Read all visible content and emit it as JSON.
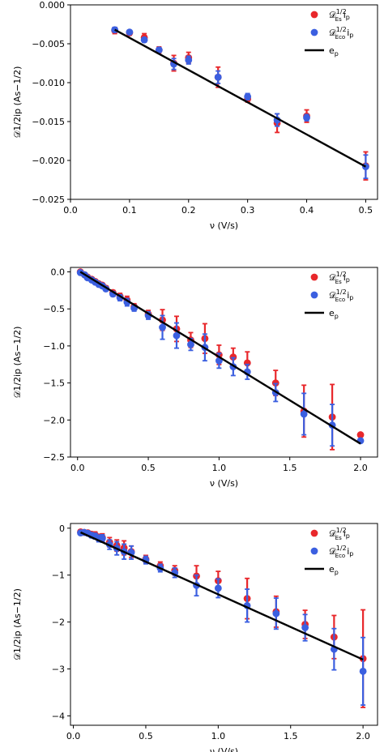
{
  "legend_labels": {
    "series_es": "𝒟",
    "series_es_sup": "1/2",
    "series_es_sub": "Es",
    "series_eco": "𝒟",
    "series_eco_sup": "1/2",
    "series_eco_sub": "Eco",
    "series_suffix": "i",
    "series_suffix_sub": "p",
    "line": "e",
    "line_sub": "p"
  },
  "colors": {
    "red": "#e8272b",
    "blue": "#3b5fe0",
    "line": "#000000"
  },
  "chart_data": [
    {
      "type": "scatter",
      "xlabel": "ν (V/s)",
      "ylabel": "𝒟1/2ip (As−1/2)",
      "xlim": [
        0.0,
        0.52
      ],
      "ylim": [
        -0.025,
        0.0
      ],
      "xticks": [
        "0.0",
        "0.1",
        "0.2",
        "0.3",
        "0.4",
        "0.5"
      ],
      "xtick_values": [
        0.0,
        0.1,
        0.2,
        0.3,
        0.4,
        0.5
      ],
      "yticks": [
        "0.000",
        "−0.005",
        "−0.010",
        "−0.015",
        "−0.020",
        "−0.025"
      ],
      "ytick_values": [
        0.0,
        -0.005,
        -0.01,
        -0.015,
        -0.02,
        -0.025
      ],
      "legend_position": "top-right",
      "fit_line": {
        "x": [
          0.075,
          0.5
        ],
        "y": [
          -0.0032,
          -0.0208
        ]
      },
      "series": [
        {
          "color": "red",
          "points": [
            [
              0.075,
              -0.0033,
              0.0004
            ],
            [
              0.1,
              -0.0036,
              0.0003
            ],
            [
              0.125,
              -0.0042,
              0.0005
            ],
            [
              0.15,
              -0.0058,
              0.0004
            ],
            [
              0.175,
              -0.0075,
              0.001
            ],
            [
              0.2,
              -0.0068,
              0.0007
            ],
            [
              0.25,
              -0.0093,
              0.0013
            ],
            [
              0.3,
              -0.0121,
              0.0004
            ],
            [
              0.35,
              -0.0152,
              0.0012
            ],
            [
              0.4,
              -0.0143,
              0.0008
            ],
            [
              0.5,
              -0.0207,
              0.0018
            ]
          ]
        },
        {
          "color": "blue",
          "points": [
            [
              0.075,
              -0.0032,
              0.0003
            ],
            [
              0.1,
              -0.0035,
              0.0002
            ],
            [
              0.125,
              -0.0045,
              0.0003
            ],
            [
              0.15,
              -0.0058,
              0.0003
            ],
            [
              0.175,
              -0.0076,
              0.0007
            ],
            [
              0.2,
              -0.0071,
              0.0005
            ],
            [
              0.25,
              -0.0093,
              0.0008
            ],
            [
              0.3,
              -0.0118,
              0.0004
            ],
            [
              0.35,
              -0.0148,
              0.0008
            ],
            [
              0.4,
              -0.0145,
              0.0004
            ],
            [
              0.5,
              -0.0208,
              0.0015
            ]
          ]
        }
      ]
    },
    {
      "type": "scatter",
      "xlabel": "ν (V/s)",
      "ylabel": "𝒟1/2ip (As−1/2)",
      "xlim": [
        -0.05,
        2.12
      ],
      "ylim": [
        -2.5,
        0.06
      ],
      "xticks": [
        "0.0",
        "0.5",
        "1.0",
        "1.5",
        "2.0"
      ],
      "xtick_values": [
        0.0,
        0.5,
        1.0,
        1.5,
        2.0
      ],
      "yticks": [
        "0.0",
        "−0.5",
        "−1.0",
        "−1.5",
        "−2.0",
        "−2.5"
      ],
      "ytick_values": [
        0.0,
        -0.5,
        -1.0,
        -1.5,
        -2.0,
        -2.5
      ],
      "legend_position": "top-right",
      "fit_line": {
        "x": [
          0.02,
          2.0
        ],
        "y": [
          0.0,
          -2.32
        ]
      },
      "series": [
        {
          "color": "red",
          "points": [
            [
              0.02,
              0.0,
              0.01
            ],
            [
              0.05,
              -0.04,
              0.01
            ],
            [
              0.07,
              -0.07,
              0.01
            ],
            [
              0.1,
              -0.1,
              0.02
            ],
            [
              0.125,
              -0.13,
              0.02
            ],
            [
              0.15,
              -0.16,
              0.02
            ],
            [
              0.175,
              -0.18,
              0.02
            ],
            [
              0.2,
              -0.22,
              0.03
            ],
            [
              0.25,
              -0.28,
              0.03
            ],
            [
              0.3,
              -0.33,
              0.04
            ],
            [
              0.35,
              -0.38,
              0.05
            ],
            [
              0.4,
              -0.47,
              0.04
            ],
            [
              0.5,
              -0.57,
              0.05
            ],
            [
              0.6,
              -0.65,
              0.14
            ],
            [
              0.7,
              -0.77,
              0.17
            ],
            [
              0.8,
              -0.92,
              0.1
            ],
            [
              0.9,
              -0.9,
              0.2
            ],
            [
              1.0,
              -1.12,
              0.13
            ],
            [
              1.1,
              -1.15,
              0.12
            ],
            [
              1.2,
              -1.23,
              0.15
            ],
            [
              1.4,
              -1.5,
              0.17
            ],
            [
              1.6,
              -1.88,
              0.35
            ],
            [
              1.8,
              -1.96,
              0.44
            ],
            [
              2.0,
              -2.2,
              0.02
            ]
          ]
        },
        {
          "color": "blue",
          "points": [
            [
              0.02,
              -0.01,
              0.01
            ],
            [
              0.05,
              -0.04,
              0.01
            ],
            [
              0.07,
              -0.08,
              0.01
            ],
            [
              0.1,
              -0.11,
              0.02
            ],
            [
              0.125,
              -0.14,
              0.02
            ],
            [
              0.15,
              -0.17,
              0.02
            ],
            [
              0.175,
              -0.19,
              0.02
            ],
            [
              0.2,
              -0.23,
              0.02
            ],
            [
              0.25,
              -0.3,
              0.03
            ],
            [
              0.3,
              -0.35,
              0.04
            ],
            [
              0.35,
              -0.41,
              0.05
            ],
            [
              0.4,
              -0.49,
              0.04
            ],
            [
              0.5,
              -0.59,
              0.05
            ],
            [
              0.6,
              -0.75,
              0.16
            ],
            [
              0.7,
              -0.86,
              0.17
            ],
            [
              0.8,
              -0.98,
              0.08
            ],
            [
              0.9,
              -1.02,
              0.18
            ],
            [
              1.0,
              -1.2,
              0.1
            ],
            [
              1.1,
              -1.28,
              0.12
            ],
            [
              1.2,
              -1.35,
              0.1
            ],
            [
              1.4,
              -1.63,
              0.12
            ],
            [
              1.6,
              -1.92,
              0.28
            ],
            [
              1.8,
              -2.07,
              0.28
            ],
            [
              2.0,
              -2.28,
              0.02
            ]
          ]
        }
      ]
    },
    {
      "type": "scatter",
      "xlabel": "ν (V/s)",
      "ylabel": "𝒟1/2ip (As−1/2)",
      "xlim": [
        -0.02,
        2.1
      ],
      "ylim": [
        -4.2,
        0.1
      ],
      "xticks": [
        "0.0",
        "0.5",
        "1.0",
        "1.5",
        "2.0"
      ],
      "xtick_values": [
        0.0,
        0.5,
        1.0,
        1.5,
        2.0
      ],
      "yticks": [
        "0",
        "−1",
        "−2",
        "−3",
        "−4"
      ],
      "ytick_values": [
        0,
        -1,
        -2,
        -3,
        -4
      ],
      "legend_position": "top-right",
      "fit_line": {
        "x": [
          0.05,
          2.0
        ],
        "y": [
          -0.09,
          -2.8
        ]
      },
      "series": [
        {
          "color": "red",
          "points": [
            [
              0.05,
              -0.08,
              0.02
            ],
            [
              0.075,
              -0.09,
              0.03
            ],
            [
              0.1,
              -0.1,
              0.04
            ],
            [
              0.125,
              -0.13,
              0.05
            ],
            [
              0.15,
              -0.14,
              0.06
            ],
            [
              0.175,
              -0.2,
              0.07
            ],
            [
              0.2,
              -0.2,
              0.08
            ],
            [
              0.25,
              -0.3,
              0.1
            ],
            [
              0.3,
              -0.37,
              0.12
            ],
            [
              0.35,
              -0.42,
              0.15
            ],
            [
              0.4,
              -0.5,
              0.12
            ],
            [
              0.5,
              -0.66,
              0.08
            ],
            [
              0.6,
              -0.8,
              0.08
            ],
            [
              0.7,
              -0.9,
              0.1
            ],
            [
              0.85,
              -1.02,
              0.22
            ],
            [
              1.0,
              -1.12,
              0.2
            ],
            [
              1.2,
              -1.5,
              0.43
            ],
            [
              1.4,
              -1.78,
              0.33
            ],
            [
              1.6,
              -2.05,
              0.3
            ],
            [
              1.8,
              -2.32,
              0.46
            ],
            [
              2.0,
              -2.78,
              1.04
            ]
          ]
        },
        {
          "color": "blue",
          "points": [
            [
              0.05,
              -0.1,
              0.02
            ],
            [
              0.075,
              -0.09,
              0.03
            ],
            [
              0.1,
              -0.11,
              0.04
            ],
            [
              0.125,
              -0.15,
              0.05
            ],
            [
              0.15,
              -0.17,
              0.06
            ],
            [
              0.175,
              -0.22,
              0.07
            ],
            [
              0.2,
              -0.22,
              0.08
            ],
            [
              0.25,
              -0.35,
              0.1
            ],
            [
              0.3,
              -0.43,
              0.14
            ],
            [
              0.35,
              -0.5,
              0.16
            ],
            [
              0.4,
              -0.52,
              0.14
            ],
            [
              0.5,
              -0.68,
              0.08
            ],
            [
              0.6,
              -0.85,
              0.08
            ],
            [
              0.7,
              -0.95,
              0.1
            ],
            [
              0.85,
              -1.22,
              0.22
            ],
            [
              1.0,
              -1.28,
              0.2
            ],
            [
              1.2,
              -1.65,
              0.35
            ],
            [
              1.4,
              -1.82,
              0.33
            ],
            [
              1.6,
              -2.12,
              0.28
            ],
            [
              1.8,
              -2.58,
              0.44
            ],
            [
              2.0,
              -3.05,
              0.72
            ]
          ]
        }
      ]
    }
  ]
}
